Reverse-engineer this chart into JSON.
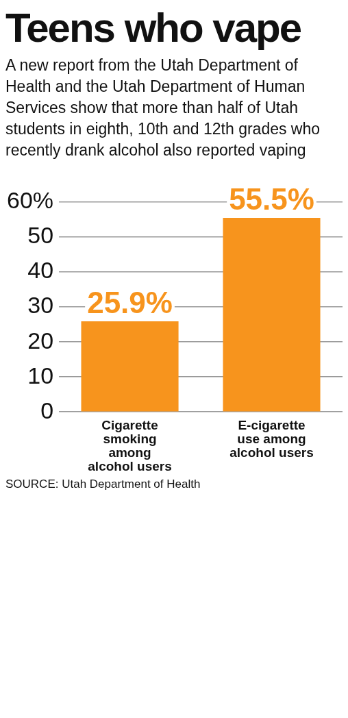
{
  "chart_data": {
    "type": "bar",
    "title": "Teens who vape",
    "subtitle": "A new report from the Utah Department of Health and the Utah Department of Human Services show that more than half of Utah students in eighth, 10th and 12th grades who recently drank alcohol also reported vaping",
    "categories": [
      "Cigarette smoking among alcohol users",
      "E-cigarette use among alcohol users"
    ],
    "values": [
      25.9,
      55.5
    ],
    "value_labels": [
      "25.9%",
      "55.5%"
    ],
    "color": "#f7941d",
    "ylim": [
      0,
      60
    ],
    "yticks": [
      0,
      10,
      20,
      30,
      40,
      50,
      {
        "value": 60,
        "label": "60%"
      }
    ],
    "grid": "y",
    "annotations": [
      "SOURCE: Utah Department of Health"
    ]
  }
}
